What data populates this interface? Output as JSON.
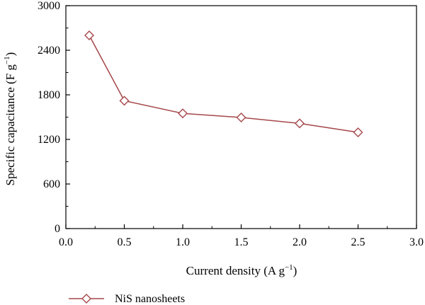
{
  "chart_data": {
    "type": "line",
    "xlabel": "Current density (A g",
    "xlabel_sup": "−1",
    "xlabel_close": ")",
    "ylabel": "Specific capacitance (F g",
    "ylabel_sup": "−1",
    "ylabel_close": ")",
    "xlim": [
      0.0,
      3.0
    ],
    "ylim": [
      0,
      3000
    ],
    "x_ticks": [
      "0.0",
      "0.5",
      "1.0",
      "1.5",
      "2.0",
      "2.5",
      "3.0"
    ],
    "x_tick_values": [
      0.0,
      0.5,
      1.0,
      1.5,
      2.0,
      2.5,
      3.0
    ],
    "y_ticks": [
      "0",
      "600",
      "1200",
      "1800",
      "2400",
      "3000"
    ],
    "y_tick_values": [
      0,
      600,
      1200,
      1800,
      2400,
      3000
    ],
    "legend_position": "bottom-left, below axes",
    "series": [
      {
        "name": "NiS nanosheets",
        "color": "#a5474a",
        "marker": "diamond-open",
        "x": [
          0.2,
          0.5,
          1.0,
          1.5,
          2.0,
          2.5
        ],
        "y": [
          2600,
          1720,
          1550,
          1495,
          1415,
          1295
        ]
      }
    ]
  }
}
